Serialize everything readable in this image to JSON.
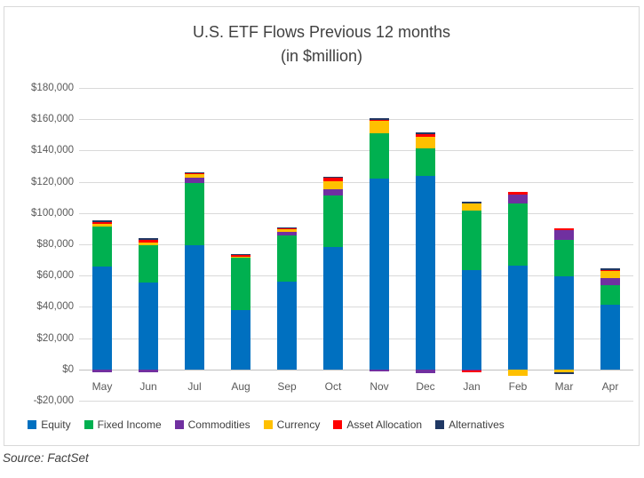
{
  "title": {
    "line1": "U.S. ETF Flows Previous 12 months",
    "line2": "(in $million)"
  },
  "source_note": "Source: FactSet",
  "colors": {
    "equity": "#0070C0",
    "fixed_income": "#00B050",
    "commodities": "#7030A0",
    "currency": "#FFC000",
    "asset_allocation": "#FF0000",
    "alternatives": "#1F3864",
    "gridline": "#D9D9D9",
    "axis_line": "#BFBFBF",
    "axis_text": "#595959",
    "title_text": "#404040"
  },
  "chart_data": {
    "type": "bar",
    "stacked": true,
    "title": "U.S. ETF Flows Previous 12 months (in $million)",
    "xlabel": "",
    "ylabel": "",
    "grid": true,
    "legend_position": "bottom",
    "ylim": [
      -20000,
      180000
    ],
    "ytick_step": 20000,
    "ytick_labels": [
      "$180,000",
      "$160,000",
      "$140,000",
      "$120,000",
      "$100,000",
      "$80,000",
      "$60,000",
      "$40,000",
      "$20,000",
      "$0",
      "-$20,000"
    ],
    "categories": [
      "May",
      "Jun",
      "Jul",
      "Aug",
      "Sep",
      "Oct",
      "Nov",
      "Dec",
      "Jan",
      "Feb",
      "Mar",
      "Apr"
    ],
    "series": [
      {
        "name": "Equity",
        "color": "#0070C0",
        "values": [
          66000,
          55500,
          79500,
          38000,
          56000,
          78500,
          122000,
          123500,
          63800,
          66300,
          59500,
          41500
        ]
      },
      {
        "name": "Fixed Income",
        "color": "#00B050",
        "values": [
          25500,
          23900,
          39500,
          33500,
          29700,
          32500,
          29000,
          17800,
          37900,
          39600,
          23400,
          12300
        ]
      },
      {
        "name": "Commodities",
        "color": "#7030A0",
        "values": [
          -1700,
          -2000,
          3500,
          0,
          2300,
          4400,
          -1300,
          -2400,
          -500,
          6000,
          6000,
          4700
        ]
      },
      {
        "name": "Currency",
        "color": "#FFC000",
        "values": [
          1500,
          1500,
          2400,
          700,
          1500,
          4800,
          7700,
          7500,
          4200,
          -4000,
          -1900,
          4700
        ]
      },
      {
        "name": "Asset Allocation",
        "color": "#FF0000",
        "values": [
          1300,
          1700,
          600,
          900,
          800,
          2400,
          1100,
          1500,
          -1500,
          1500,
          1300,
          500
        ]
      },
      {
        "name": "Alternatives",
        "color": "#1F3864",
        "values": [
          1300,
          1100,
          600,
          900,
          700,
          800,
          1100,
          1200,
          1300,
          0,
          -1100,
          1100
        ]
      }
    ]
  }
}
